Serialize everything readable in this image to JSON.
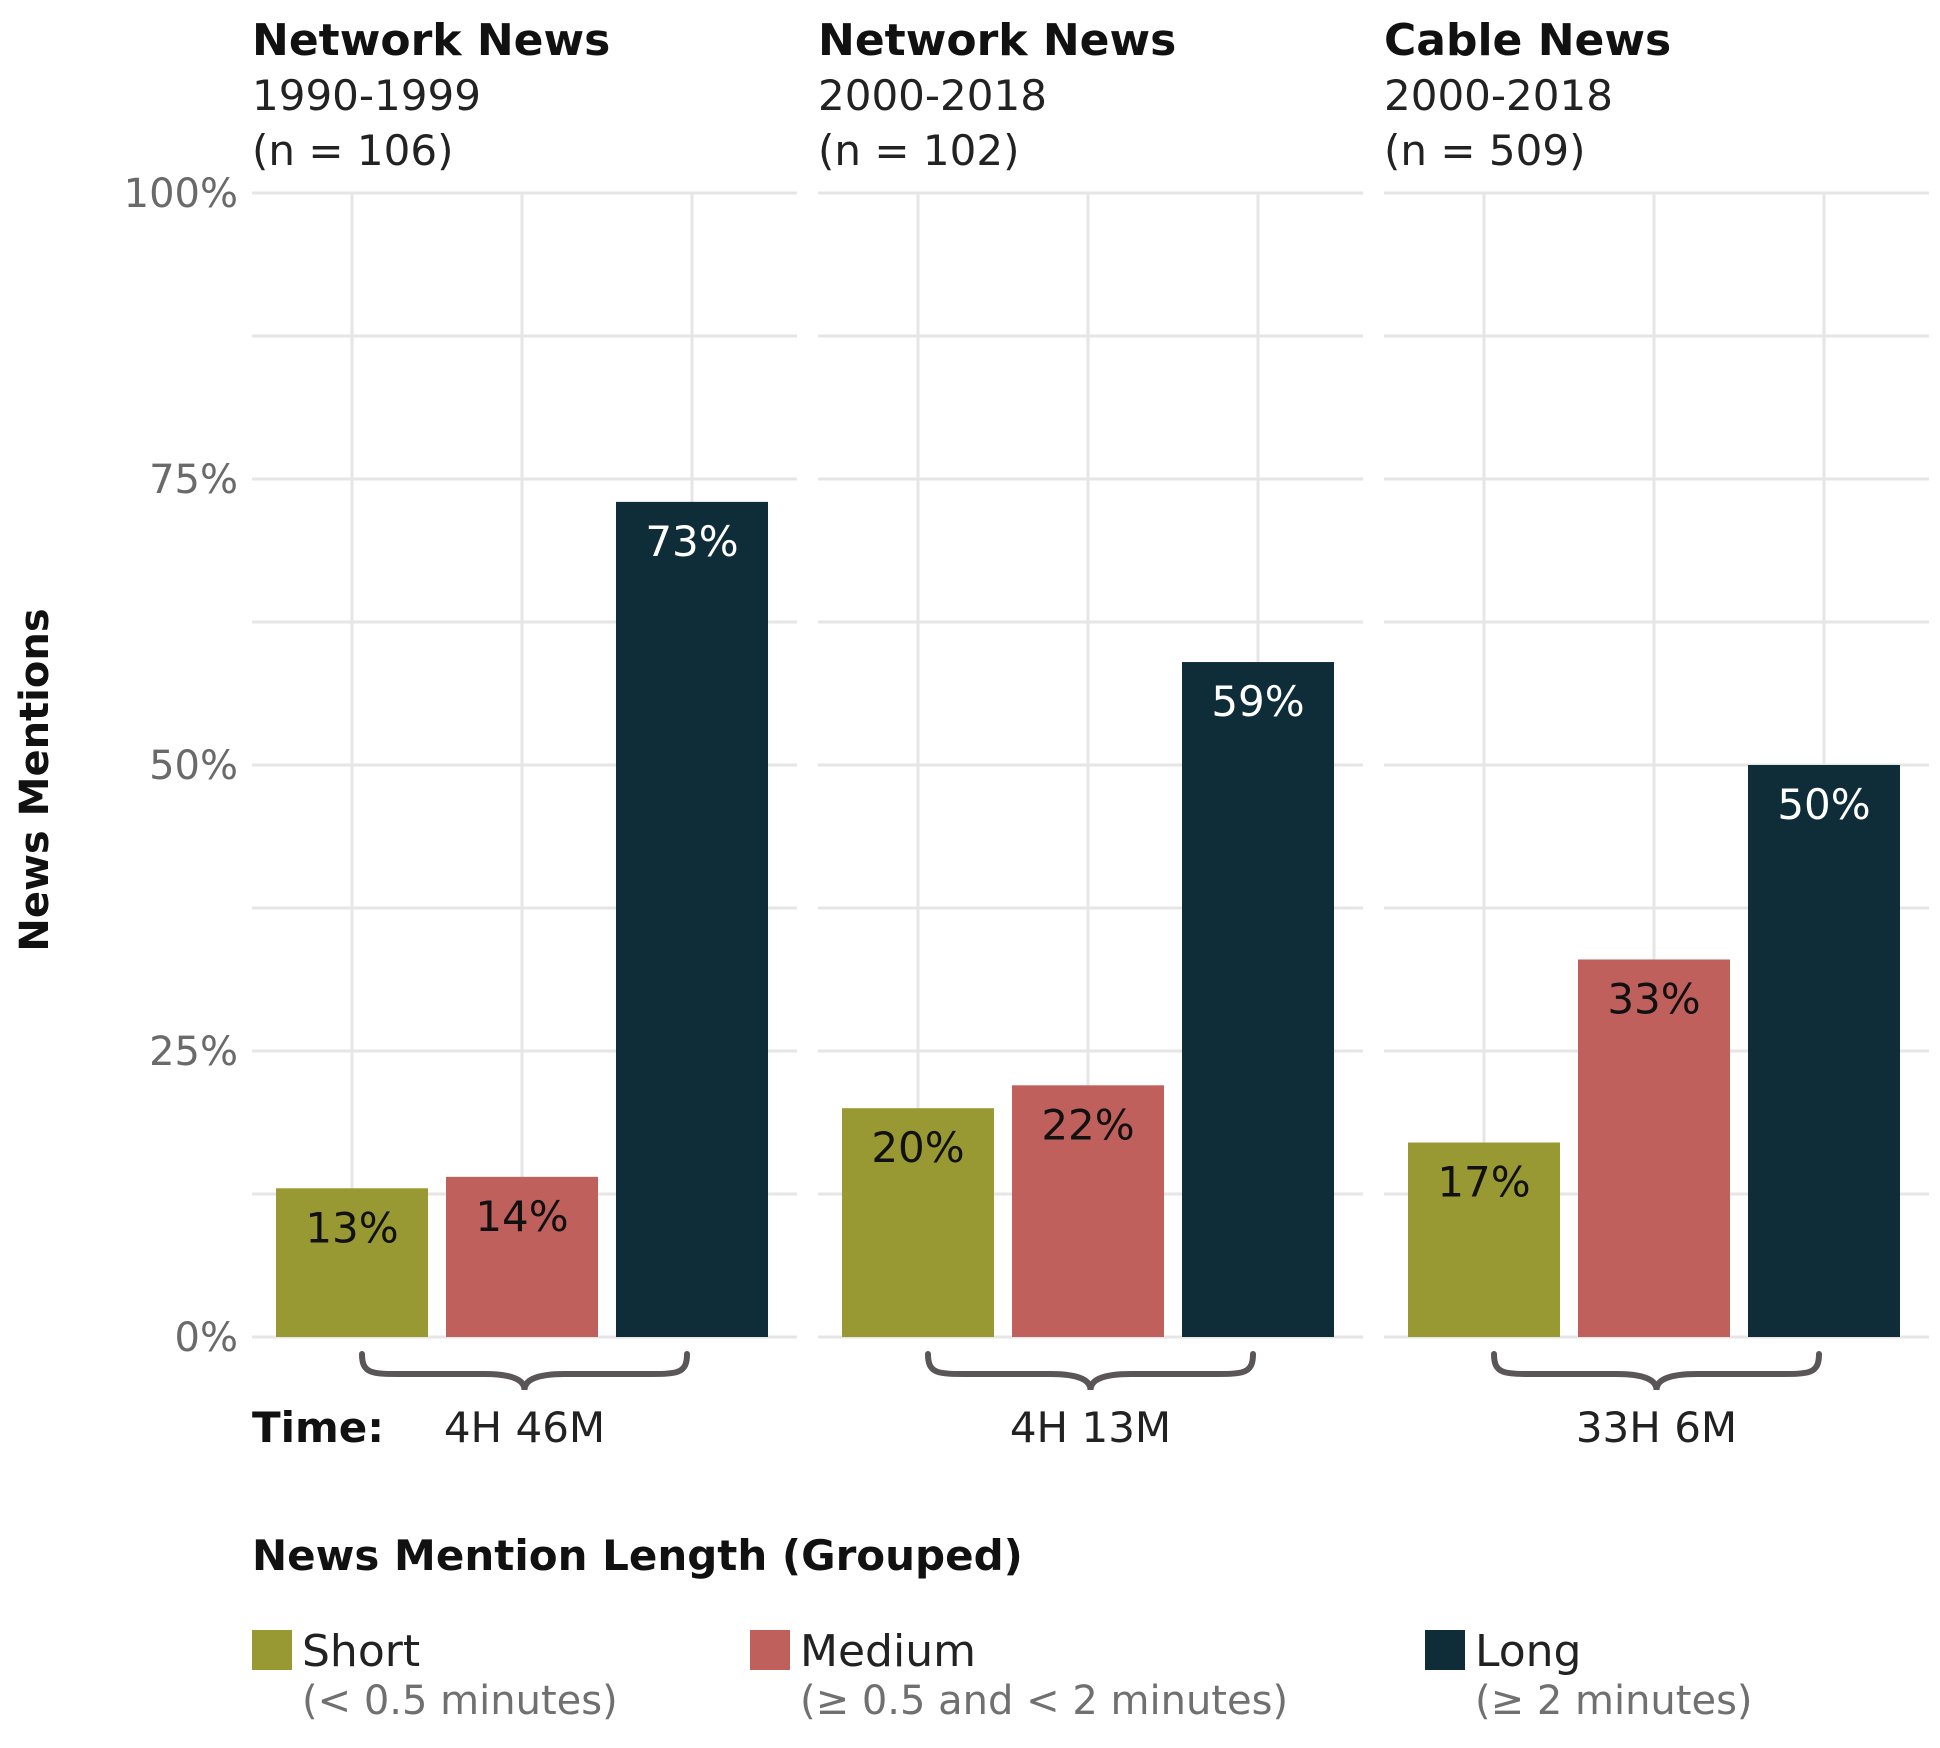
{
  "chart_data": {
    "type": "bar",
    "ylabel": "News Mentions",
    "ylim": [
      0,
      100
    ],
    "yticks": [
      "0%",
      "25%",
      "50%",
      "75%",
      "100%"
    ],
    "grid": true,
    "panels": [
      {
        "title": "Network News",
        "period": "1990-1999",
        "n": "(n = 106)",
        "time": "4H 46M",
        "values": [
          13,
          14,
          73
        ],
        "labels": [
          "13%",
          "14%",
          "73%"
        ]
      },
      {
        "title": "Network News",
        "period": "2000-2018",
        "n": "(n = 102)",
        "time": "4H 13M",
        "values": [
          20,
          22,
          59
        ],
        "labels": [
          "20%",
          "22%",
          "59%"
        ]
      },
      {
        "title": "Cable News",
        "period": "2000-2018",
        "n": "(n = 509)",
        "time": "33H 6M",
        "values": [
          17,
          33,
          50
        ],
        "labels": [
          "17%",
          "33%",
          "50%"
        ]
      }
    ],
    "time_label": "Time:",
    "legend": {
      "title": "News Mention Length (Grouped)",
      "placement": "bottom",
      "items": [
        {
          "name": "Short",
          "sub": "(< 0.5 minutes)",
          "color": "#999933"
        },
        {
          "name": "Medium",
          "sub": "(≥ 0.5 and < 2 minutes)",
          "color": "#C0605C"
        },
        {
          "name": "Long",
          "sub": "(≥ 2 minutes)",
          "color": "#0F2D38"
        }
      ]
    }
  }
}
